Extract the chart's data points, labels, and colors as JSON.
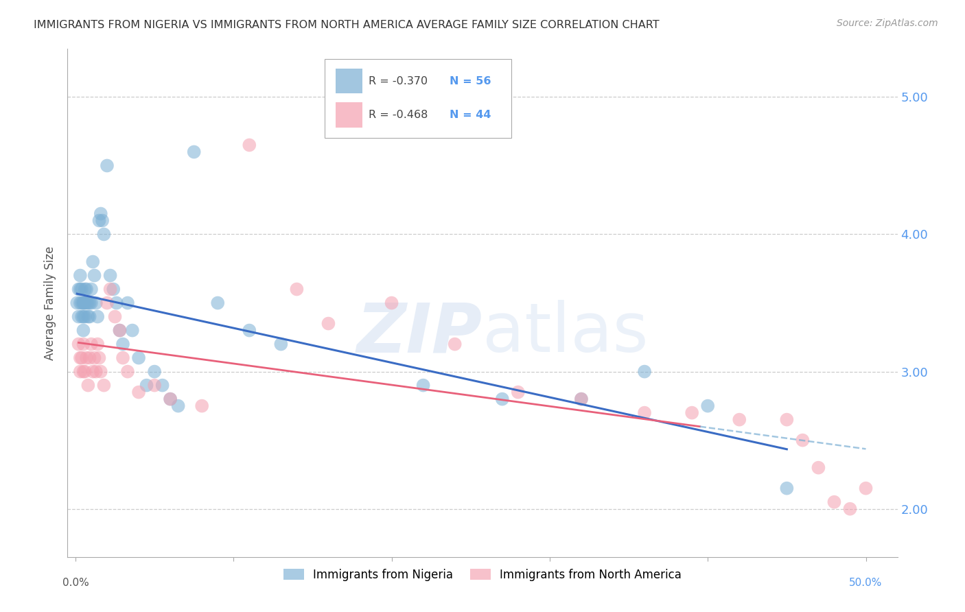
{
  "title": "IMMIGRANTS FROM NIGERIA VS IMMIGRANTS FROM NORTH AMERICA AVERAGE FAMILY SIZE CORRELATION CHART",
  "source": "Source: ZipAtlas.com",
  "ylabel": "Average Family Size",
  "yticks": [
    2.0,
    3.0,
    4.0,
    5.0
  ],
  "xlim": [
    -0.005,
    0.52
  ],
  "ylim": [
    1.65,
    5.35
  ],
  "legend_label1": "Immigrants from Nigeria",
  "legend_label2": "Immigrants from North America",
  "R1": "-0.370",
  "N1": "56",
  "R2": "-0.468",
  "N2": "44",
  "color_blue": "#7BAFD4",
  "color_pink": "#F4A0B0",
  "color_blue_line": "#3A6CC4",
  "color_pink_line": "#E8607A",
  "color_blue_dashed": "#7BAFD4",
  "color_axis_right": "#5599EE",
  "nigeria_x": [
    0.001,
    0.002,
    0.002,
    0.003,
    0.003,
    0.003,
    0.004,
    0.004,
    0.004,
    0.005,
    0.005,
    0.005,
    0.005,
    0.006,
    0.006,
    0.006,
    0.007,
    0.007,
    0.008,
    0.008,
    0.009,
    0.009,
    0.01,
    0.01,
    0.011,
    0.012,
    0.013,
    0.014,
    0.015,
    0.016,
    0.017,
    0.018,
    0.02,
    0.022,
    0.024,
    0.026,
    0.028,
    0.03,
    0.033,
    0.036,
    0.04,
    0.045,
    0.05,
    0.055,
    0.06,
    0.065,
    0.075,
    0.09,
    0.11,
    0.13,
    0.22,
    0.27,
    0.32,
    0.36,
    0.4,
    0.45
  ],
  "nigeria_y": [
    3.5,
    3.6,
    3.4,
    3.7,
    3.6,
    3.5,
    3.5,
    3.4,
    3.6,
    3.5,
    3.4,
    3.5,
    3.3,
    3.6,
    3.5,
    3.4,
    3.5,
    3.6,
    3.5,
    3.4,
    3.5,
    3.4,
    3.6,
    3.5,
    3.8,
    3.7,
    3.5,
    3.4,
    4.1,
    4.15,
    4.1,
    4.0,
    4.5,
    3.7,
    3.6,
    3.5,
    3.3,
    3.2,
    3.5,
    3.3,
    3.1,
    2.9,
    3.0,
    2.9,
    2.8,
    2.75,
    4.6,
    3.5,
    3.3,
    3.2,
    2.9,
    2.8,
    2.8,
    3.0,
    2.75,
    2.15
  ],
  "north_america_x": [
    0.002,
    0.003,
    0.003,
    0.004,
    0.005,
    0.005,
    0.006,
    0.007,
    0.008,
    0.009,
    0.01,
    0.011,
    0.012,
    0.013,
    0.014,
    0.015,
    0.016,
    0.018,
    0.02,
    0.022,
    0.025,
    0.028,
    0.03,
    0.033,
    0.04,
    0.05,
    0.06,
    0.08,
    0.11,
    0.14,
    0.16,
    0.2,
    0.24,
    0.28,
    0.32,
    0.36,
    0.39,
    0.42,
    0.45,
    0.46,
    0.47,
    0.48,
    0.49,
    0.5
  ],
  "north_america_y": [
    3.2,
    3.1,
    3.0,
    3.1,
    3.2,
    3.0,
    3.0,
    3.1,
    2.9,
    3.1,
    3.2,
    3.0,
    3.1,
    3.0,
    3.2,
    3.1,
    3.0,
    2.9,
    3.5,
    3.6,
    3.4,
    3.3,
    3.1,
    3.0,
    2.85,
    2.9,
    2.8,
    2.75,
    4.65,
    3.6,
    3.35,
    3.5,
    3.2,
    2.85,
    2.8,
    2.7,
    2.7,
    2.65,
    2.65,
    2.5,
    2.3,
    2.05,
    2.0,
    2.15
  ],
  "line_nigeria_x0": 0.001,
  "line_nigeria_x1": 0.45,
  "line_na_x0": 0.002,
  "line_na_x1": 0.5,
  "line_na_split": 0.395
}
